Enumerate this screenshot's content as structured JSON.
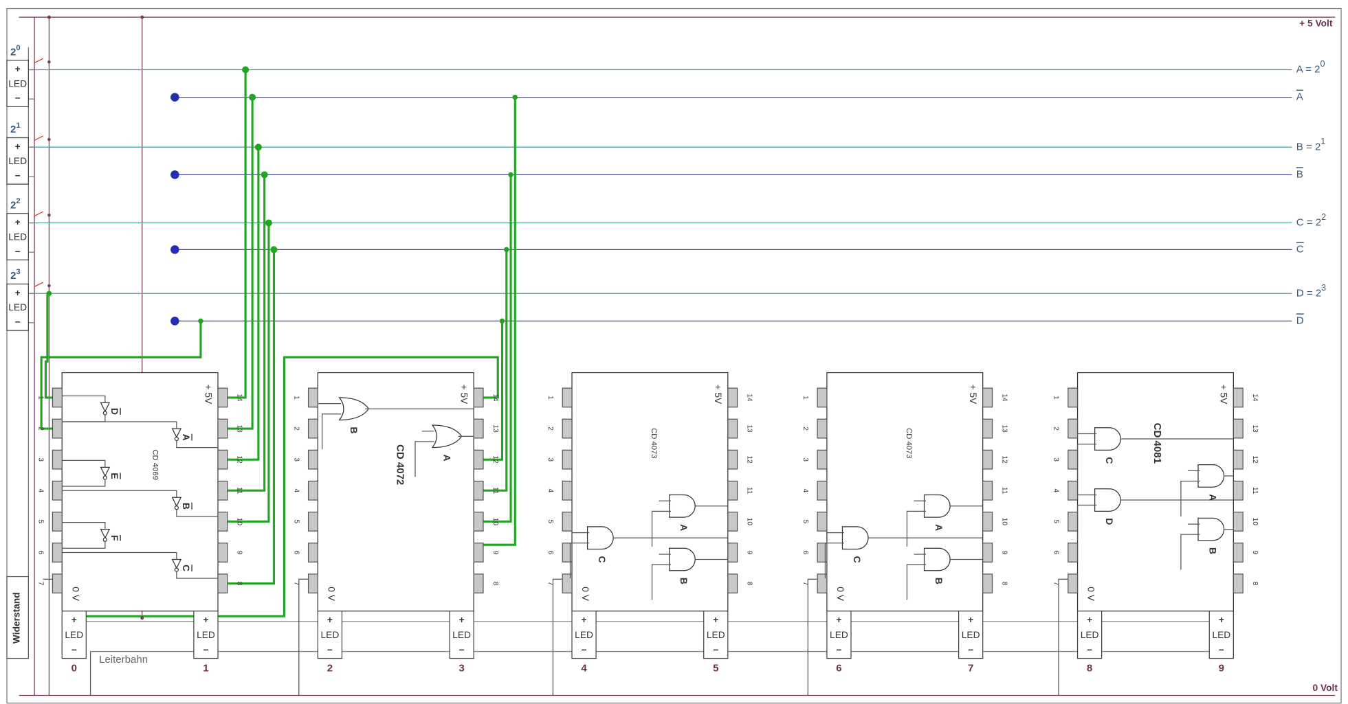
{
  "rails": {
    "plus": "+ 5 Volt",
    "zero": "0 Volt"
  },
  "inputs": [
    {
      "base": "2",
      "sup": "0"
    },
    {
      "base": "2",
      "sup": "1"
    },
    {
      "base": "2",
      "sup": "2"
    },
    {
      "base": "2",
      "sup": "3"
    }
  ],
  "lines": [
    {
      "text": "A = 2",
      "sup": "0",
      "inverted": false
    },
    {
      "text": "A",
      "inverted": true
    },
    {
      "text": "B = 2",
      "sup": "1",
      "inverted": false
    },
    {
      "text": "B",
      "inverted": true
    },
    {
      "text": "C = 2",
      "sup": "2",
      "inverted": false
    },
    {
      "text": "C",
      "inverted": true
    },
    {
      "text": "D = 2",
      "sup": "3",
      "inverted": false
    },
    {
      "text": "D",
      "inverted": true
    }
  ],
  "led": {
    "plus": "+",
    "label": "LED",
    "minus": "−"
  },
  "resistor": "Widerstand",
  "trace": "Leiterbahn",
  "vdd": "+ 5V",
  "gnd": "0 V",
  "pins": [
    "1",
    "2",
    "3",
    "4",
    "5",
    "6",
    "7",
    "8",
    "9",
    "10",
    "11",
    "12",
    "13",
    "14"
  ],
  "chips": [
    {
      "name": "CD  4069",
      "gates": [
        "D",
        "E",
        "F",
        "A",
        "B",
        "C"
      ],
      "overline": true
    },
    {
      "name": "CD 4072",
      "gates": [
        "B",
        "A"
      ],
      "overline": false
    },
    {
      "name": "CD  4073",
      "gates": [
        "C",
        "A",
        "B"
      ],
      "overline": false
    },
    {
      "name": "CD  4073",
      "gates": [
        "C",
        "A",
        "B"
      ],
      "overline": false
    },
    {
      "name": "CD 4081",
      "gates": [
        "C",
        "D",
        "A",
        "B"
      ],
      "overline": false
    }
  ],
  "outputs": [
    "0",
    "1",
    "2",
    "3",
    "4",
    "5",
    "6",
    "7",
    "8",
    "9"
  ]
}
